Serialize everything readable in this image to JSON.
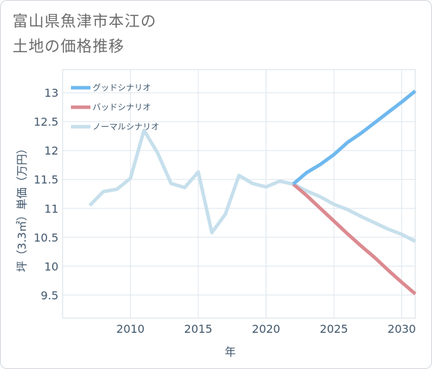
{
  "header": {
    "title_line1": "富山県魚津市本江の",
    "title_line2": "土地の価格推移"
  },
  "chart_data": {
    "type": "line",
    "title": "富山県魚津市本江の土地の価格推移",
    "xlabel": "年",
    "ylabel": "坪（3.3㎡）単価（万円）",
    "xlim": [
      2005,
      2031
    ],
    "ylim": [
      9.1,
      13.4
    ],
    "x_ticks": [
      2010,
      2015,
      2020,
      2025,
      2030
    ],
    "y_ticks": [
      9.5,
      10,
      10.5,
      11,
      11.5,
      12,
      12.5,
      13
    ],
    "grid": true,
    "legend_position": "top-left",
    "series": [
      {
        "name": "グッドシナリオ",
        "color": "#6fb8ee",
        "points": [
          [
            2022,
            11.42
          ],
          [
            2023,
            11.62
          ],
          [
            2024,
            11.76
          ],
          [
            2025,
            11.93
          ],
          [
            2026,
            12.14
          ],
          [
            2027,
            12.3
          ],
          [
            2028,
            12.48
          ],
          [
            2029,
            12.66
          ],
          [
            2030,
            12.84
          ],
          [
            2031,
            13.03
          ]
        ]
      },
      {
        "name": "バッドシナリオ",
        "color": "#db8a90",
        "points": [
          [
            2022,
            11.42
          ],
          [
            2023,
            11.22
          ],
          [
            2024,
            11.0
          ],
          [
            2025,
            10.78
          ],
          [
            2026,
            10.56
          ],
          [
            2027,
            10.35
          ],
          [
            2028,
            10.15
          ],
          [
            2029,
            9.93
          ],
          [
            2030,
            9.72
          ],
          [
            2031,
            9.52
          ]
        ]
      },
      {
        "name": "ノーマルシナリオ",
        "color": "#c6dfec",
        "points": [
          [
            2007,
            11.05
          ],
          [
            2008,
            11.29
          ],
          [
            2009,
            11.33
          ],
          [
            2010,
            11.52
          ],
          [
            2011,
            12.35
          ],
          [
            2012,
            11.96
          ],
          [
            2013,
            11.43
          ],
          [
            2014,
            11.36
          ],
          [
            2015,
            11.63
          ],
          [
            2016,
            10.58
          ],
          [
            2017,
            10.9
          ],
          [
            2018,
            11.57
          ],
          [
            2019,
            11.43
          ],
          [
            2020,
            11.37
          ],
          [
            2021,
            11.47
          ],
          [
            2022,
            11.42
          ],
          [
            2023,
            11.3
          ],
          [
            2024,
            11.2
          ],
          [
            2025,
            11.07
          ],
          [
            2026,
            10.98
          ],
          [
            2027,
            10.86
          ],
          [
            2028,
            10.75
          ],
          [
            2029,
            10.64
          ],
          [
            2030,
            10.55
          ],
          [
            2031,
            10.43
          ]
        ]
      }
    ]
  }
}
